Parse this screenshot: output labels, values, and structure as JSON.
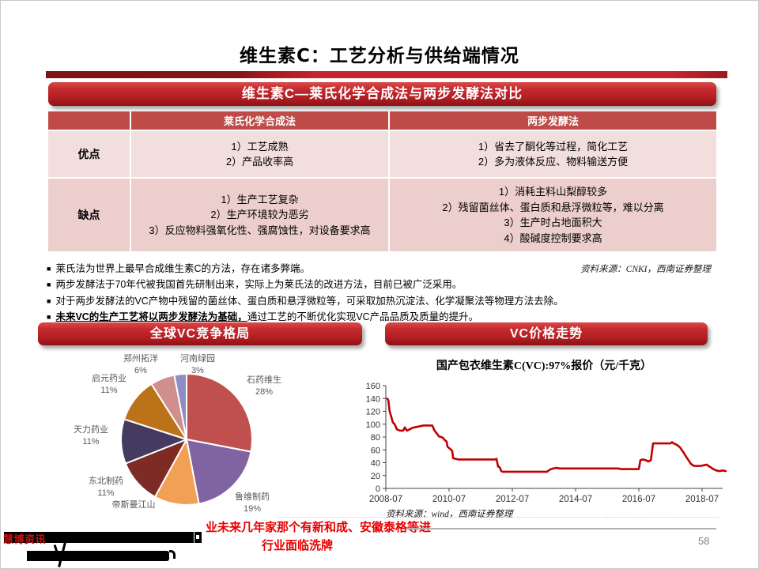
{
  "slide": {
    "title": "维生素C：工艺分析与供给端情况",
    "page_number": "58"
  },
  "comparison": {
    "banner": "维生素C—莱氏化学合成法与两步发酵法对比",
    "col_headers": [
      "莱氏化学合成法",
      "两步发酵法"
    ],
    "rows": [
      {
        "label": "优点",
        "laishi": "1）工艺成熟\n2）产品收率高",
        "liangbu": "1）省去了酮化等过程，简化工艺\n2）多为液体反应、物料输送方便"
      },
      {
        "label": "缺点",
        "laishi": "1）生产工艺复杂\n2）生产环境较为恶劣\n3）反应物料强氧化性、强腐蚀性，对设备要求高",
        "liangbu": "1）消耗主料山梨醇较多\n2）残留菌丝体、蛋白质和悬浮微粒等，难以分离\n3）生产时占地面积大\n4）酸碱度控制要求高"
      }
    ],
    "source_note": "资料来源：CNKI，西南证券整理"
  },
  "bullets": [
    {
      "marker": "■",
      "lead": "",
      "rest": "莱氏法为世界上最早合成维生素C的方法，存在诸多弊端。"
    },
    {
      "marker": "■",
      "lead": "",
      "rest": "两步发酵法于70年代被我国首先研制出来，实际上为莱氏法的改进方法，目前已被广泛采用。"
    },
    {
      "marker": "■",
      "lead": "",
      "rest": "对于两步发酵法的VC产物中残留的菌丝体、蛋白质和悬浮微粒等，可采取加热沉淀法、化学凝聚法等物理方法去除。"
    },
    {
      "marker": "■",
      "lead": "未来VC的生产工艺将以两步发酵法为基础，",
      "rest": "通过工艺的不断优化实现VC产品品质及质量的提升。"
    }
  ],
  "sections": {
    "pie_banner": "全球VC竞争格局",
    "price_banner": "VC价格走势"
  },
  "chart_data": [
    {
      "type": "pie",
      "title": "全球VC竞争格局",
      "slices": [
        {
          "label": "石药维生",
          "pct_label": "28%",
          "value": 28,
          "color": "#c0504d"
        },
        {
          "label": "鲁维制药",
          "pct_label": "19%",
          "value": 19,
          "color": "#8064a2"
        },
        {
          "label": "帝斯曼江山",
          "pct_label": "",
          "value": 11,
          "color": "#f2a055"
        },
        {
          "label": "东北制药",
          "pct_label": "11%",
          "value": 11,
          "color": "#7f2b25"
        },
        {
          "label": "天力药业",
          "pct_label": "11%",
          "value": 11,
          "color": "#453a60"
        },
        {
          "label": "启元药业",
          "pct_label": "11%",
          "value": 11,
          "color": "#bc7218"
        },
        {
          "label": "郑州拓洋",
          "pct_label": "6%",
          "value": 6,
          "color": "#d08f8d"
        },
        {
          "label": "河南绿园",
          "pct_label": "3%",
          "value": 3,
          "color": "#8d8dc3"
        }
      ],
      "legend_position": "around",
      "grid": false
    },
    {
      "type": "line",
      "title": "国产包衣维生素C(VC):97%报价（元/千克）",
      "color": "#c00000",
      "ylim": [
        0,
        160
      ],
      "y_ticks": [
        0,
        20,
        40,
        60,
        80,
        100,
        120,
        140,
        160
      ],
      "x_ticks": [
        "2008-07",
        "2010-07",
        "2012-07",
        "2014-07",
        "2016-07",
        "2018-07"
      ],
      "x_tick_years": [
        2008.5,
        2010.5,
        2012.5,
        2014.5,
        2016.5,
        2018.5
      ],
      "xlim": [
        2008.45,
        2019.3
      ],
      "grid": false,
      "series": [
        {
          "name": "国产包衣维生素C(VC):97%报价",
          "points": [
            [
              2008.55,
              140
            ],
            [
              2008.58,
              137
            ],
            [
              2008.62,
              120
            ],
            [
              2008.67,
              112
            ],
            [
              2008.72,
              103
            ],
            [
              2008.78,
              100
            ],
            [
              2008.85,
              92
            ],
            [
              2008.95,
              90
            ],
            [
              2009.05,
              90
            ],
            [
              2009.1,
              95
            ],
            [
              2009.17,
              90
            ],
            [
              2009.25,
              92
            ],
            [
              2009.33,
              94
            ],
            [
              2009.4,
              95
            ],
            [
              2009.5,
              96
            ],
            [
              2009.6,
              97
            ],
            [
              2009.7,
              98
            ],
            [
              2009.97,
              98
            ],
            [
              2010.02,
              92
            ],
            [
              2010.07,
              88
            ],
            [
              2010.12,
              85
            ],
            [
              2010.18,
              81
            ],
            [
              2010.25,
              80
            ],
            [
              2010.3,
              79
            ],
            [
              2010.37,
              75
            ],
            [
              2010.42,
              73
            ],
            [
              2010.45,
              65
            ],
            [
              2010.52,
              62
            ],
            [
              2010.57,
              60
            ],
            [
              2010.6,
              58
            ],
            [
              2010.63,
              47
            ],
            [
              2010.7,
              46
            ],
            [
              2010.8,
              45
            ],
            [
              2011.95,
              45
            ],
            [
              2012.0,
              46
            ],
            [
              2012.05,
              34
            ],
            [
              2012.1,
              33
            ],
            [
              2012.15,
              27
            ],
            [
              2012.2,
              26
            ],
            [
              2013.6,
              26
            ],
            [
              2013.65,
              28
            ],
            [
              2013.72,
              30
            ],
            [
              2013.8,
              31
            ],
            [
              2013.9,
              32
            ],
            [
              2014.0,
              31
            ],
            [
              2015.85,
              31
            ],
            [
              2015.95,
              30
            ],
            [
              2016.5,
              30
            ],
            [
              2016.55,
              44
            ],
            [
              2016.62,
              45
            ],
            [
              2016.72,
              44
            ],
            [
              2016.8,
              42
            ],
            [
              2016.88,
              44
            ],
            [
              2016.95,
              70
            ],
            [
              2017.5,
              70
            ],
            [
              2017.55,
              72
            ],
            [
              2017.6,
              70
            ],
            [
              2017.7,
              68
            ],
            [
              2017.8,
              64
            ],
            [
              2017.9,
              57
            ],
            [
              2018.0,
              49
            ],
            [
              2018.07,
              44
            ],
            [
              2018.15,
              38
            ],
            [
              2018.25,
              35
            ],
            [
              2018.45,
              35
            ],
            [
              2018.55,
              36
            ],
            [
              2018.65,
              37
            ],
            [
              2018.7,
              35
            ],
            [
              2018.8,
              32
            ],
            [
              2018.85,
              30
            ],
            [
              2018.95,
              28
            ],
            [
              2019.05,
              27
            ],
            [
              2019.15,
              28
            ],
            [
              2019.25,
              27
            ]
          ]
        }
      ],
      "source": "资料来源：wind，西南证券整理"
    }
  ],
  "annotations": {
    "red_note_line1": "业未来几年家那个有新和成、安徽泰格等进",
    "red_note_line2": "行业面临洗牌",
    "watermark": "慧博资讯"
  }
}
